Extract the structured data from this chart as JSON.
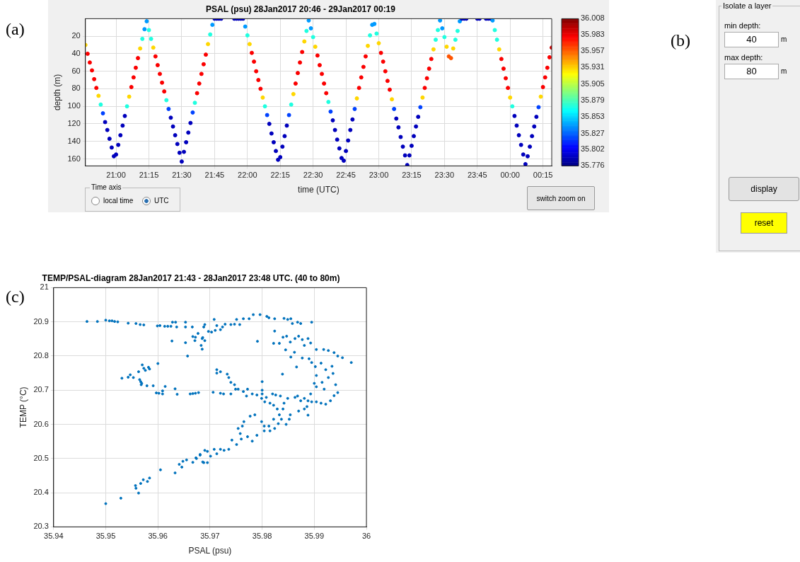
{
  "chart_data": [
    {
      "type": "scatter",
      "title": "PSAL (psu) 28Jan2017 20:46 - 29Jan2017 00:19",
      "xlabel": "time (UTC)",
      "ylabel": "depth (m)",
      "marker": "circle",
      "x": [
        "2017-01-28T20:46",
        "2017-01-28T20:47",
        "2017-01-28T20:48",
        "2017-01-28T20:49",
        "2017-01-28T20:50",
        "2017-01-28T20:51",
        "2017-01-28T20:52",
        "2017-01-28T20:53",
        "2017-01-28T20:54",
        "2017-01-28T20:55",
        "2017-01-28T20:56",
        "2017-01-28T20:57",
        "2017-01-28T20:58",
        "2017-01-28T20:59",
        "2017-01-28T21:00",
        "2017-01-28T21:01",
        "2017-01-28T21:02",
        "2017-01-28T21:03",
        "2017-01-28T21:04",
        "2017-01-28T21:05",
        "2017-01-28T21:06",
        "2017-01-28T21:07",
        "2017-01-28T21:08",
        "2017-01-28T21:09",
        "2017-01-28T21:10",
        "2017-01-28T21:11",
        "2017-01-28T21:12",
        "2017-01-28T21:13",
        "2017-01-28T21:14",
        "2017-01-28T21:15",
        "2017-01-28T21:16",
        "2017-01-28T21:17",
        "2017-01-28T21:18",
        "2017-01-28T21:19",
        "2017-01-28T21:20",
        "2017-01-28T21:21",
        "2017-01-28T21:22",
        "2017-01-28T21:23",
        "2017-01-28T21:24",
        "2017-01-28T21:25",
        "2017-01-28T21:26",
        "2017-01-28T21:27",
        "2017-01-28T21:28",
        "2017-01-28T21:29",
        "2017-01-28T21:30",
        "2017-01-28T21:31",
        "2017-01-28T21:32",
        "2017-01-28T21:33",
        "2017-01-28T21:34",
        "2017-01-28T21:35",
        "2017-01-28T21:36",
        "2017-01-28T21:37",
        "2017-01-28T21:38",
        "2017-01-28T21:39",
        "2017-01-28T21:40",
        "2017-01-28T21:41",
        "2017-01-28T21:42",
        "2017-01-28T21:43",
        "2017-01-28T21:44",
        "2017-01-28T21:45",
        "2017-01-28T21:46",
        "2017-01-28T21:47",
        "2017-01-28T21:48",
        "2017-01-28T21:54",
        "2017-01-28T21:55",
        "2017-01-28T21:56",
        "2017-01-28T21:57",
        "2017-01-28T21:58",
        "2017-01-28T21:59",
        "2017-01-28T22:00",
        "2017-01-28T22:01",
        "2017-01-28T22:02",
        "2017-01-28T22:03",
        "2017-01-28T22:04",
        "2017-01-28T22:05",
        "2017-01-28T22:06",
        "2017-01-28T22:07",
        "2017-01-28T22:08",
        "2017-01-28T22:09",
        "2017-01-28T22:10",
        "2017-01-28T22:11",
        "2017-01-28T22:12",
        "2017-01-28T22:13",
        "2017-01-28T22:14",
        "2017-01-28T22:15",
        "2017-01-28T22:16",
        "2017-01-28T22:17",
        "2017-01-28T22:18",
        "2017-01-28T22:19",
        "2017-01-28T22:20",
        "2017-01-28T22:21",
        "2017-01-28T22:22",
        "2017-01-28T22:23",
        "2017-01-28T22:24",
        "2017-01-28T22:25",
        "2017-01-28T22:26",
        "2017-01-28T22:27",
        "2017-01-28T22:28",
        "2017-01-28T22:29",
        "2017-01-28T22:30",
        "2017-01-28T22:31",
        "2017-01-28T22:32",
        "2017-01-28T22:33",
        "2017-01-28T22:34",
        "2017-01-28T22:35",
        "2017-01-28T22:36",
        "2017-01-28T22:37",
        "2017-01-28T22:38",
        "2017-01-28T22:39",
        "2017-01-28T22:40",
        "2017-01-28T22:41",
        "2017-01-28T22:42",
        "2017-01-28T22:43",
        "2017-01-28T22:44",
        "2017-01-28T22:45",
        "2017-01-28T22:46",
        "2017-01-28T22:47",
        "2017-01-28T22:48",
        "2017-01-28T22:49",
        "2017-01-28T22:50",
        "2017-01-28T22:51",
        "2017-01-28T22:52",
        "2017-01-28T22:53",
        "2017-01-28T22:54",
        "2017-01-28T22:55",
        "2017-01-28T22:56",
        "2017-01-28T22:57",
        "2017-01-28T22:58",
        "2017-01-28T22:59",
        "2017-01-28T23:00",
        "2017-01-28T23:01",
        "2017-01-28T23:02",
        "2017-01-28T23:03",
        "2017-01-28T23:04",
        "2017-01-28T23:05",
        "2017-01-28T23:06",
        "2017-01-28T23:07",
        "2017-01-28T23:08",
        "2017-01-28T23:09",
        "2017-01-28T23:10",
        "2017-01-28T23:11",
        "2017-01-28T23:12",
        "2017-01-28T23:13",
        "2017-01-28T23:14",
        "2017-01-28T23:15",
        "2017-01-28T23:16",
        "2017-01-28T23:17",
        "2017-01-28T23:18",
        "2017-01-28T23:19",
        "2017-01-28T23:20",
        "2017-01-28T23:21",
        "2017-01-28T23:22",
        "2017-01-28T23:23",
        "2017-01-28T23:24",
        "2017-01-28T23:25",
        "2017-01-28T23:26",
        "2017-01-28T23:27",
        "2017-01-28T23:28",
        "2017-01-28T23:29",
        "2017-01-28T23:30",
        "2017-01-28T23:31",
        "2017-01-28T23:32",
        "2017-01-28T23:33",
        "2017-01-28T23:34",
        "2017-01-28T23:35",
        "2017-01-28T23:36",
        "2017-01-28T23:37",
        "2017-01-28T23:38",
        "2017-01-28T23:39",
        "2017-01-28T23:40",
        "2017-01-28T23:45",
        "2017-01-28T23:46",
        "2017-01-28T23:49",
        "2017-01-28T23:50",
        "2017-01-28T23:51",
        "2017-01-28T23:52",
        "2017-01-28T23:53",
        "2017-01-28T23:54",
        "2017-01-28T23:55",
        "2017-01-28T23:56",
        "2017-01-28T23:57",
        "2017-01-28T23:58",
        "2017-01-28T23:59",
        "2017-01-29T00:00",
        "2017-01-29T00:01",
        "2017-01-29T00:02",
        "2017-01-29T00:03",
        "2017-01-29T00:04",
        "2017-01-29T00:05",
        "2017-01-29T00:06",
        "2017-01-29T00:07",
        "2017-01-29T00:08",
        "2017-01-29T00:09",
        "2017-01-29T00:10",
        "2017-01-29T00:11",
        "2017-01-29T00:12",
        "2017-01-29T00:13",
        "2017-01-29T00:14",
        "2017-01-29T00:15",
        "2017-01-29T00:16",
        "2017-01-29T00:17",
        "2017-01-29T00:18",
        "2017-01-29T00:19"
      ],
      "values": [
        30,
        40,
        50,
        59,
        69,
        79,
        88,
        98,
        108,
        118,
        127,
        137,
        147,
        157,
        155,
        144,
        133,
        122,
        111,
        100,
        89,
        78,
        67,
        56,
        45,
        34,
        23,
        12,
        3,
        13,
        23,
        33,
        43,
        53,
        63,
        73,
        83,
        93,
        103,
        113,
        123,
        133,
        143,
        153,
        163,
        152,
        141,
        130,
        119,
        107,
        96,
        85,
        74,
        63,
        52,
        41,
        29,
        18,
        7,
        0,
        0,
        0,
        0,
        0,
        0,
        0,
        0,
        0,
        9,
        19,
        29,
        39,
        49,
        60,
        70,
        80,
        90,
        100,
        110,
        120,
        131,
        141,
        151,
        161,
        158,
        146,
        134,
        122,
        110,
        98,
        86,
        74,
        62,
        50,
        38,
        26,
        14,
        2,
        11,
        21,
        32,
        42,
        53,
        63,
        74,
        85,
        95,
        106,
        116,
        127,
        138,
        148,
        159,
        162,
        151,
        139,
        127,
        115,
        103,
        91,
        79,
        67,
        55,
        43,
        31,
        19,
        7,
        6,
        17,
        28,
        39,
        49,
        60,
        71,
        81,
        92,
        103,
        114,
        124,
        135,
        146,
        156,
        167,
        156,
        145,
        134,
        123,
        112,
        101,
        90,
        79,
        68,
        57,
        46,
        35,
        24,
        13,
        2,
        11,
        21,
        32,
        43,
        45,
        34,
        24,
        14,
        3,
        0,
        0,
        0,
        0,
        0,
        0,
        0,
        0,
        2,
        13,
        24,
        35,
        46,
        57,
        68,
        79,
        90,
        100,
        111,
        122,
        133,
        144,
        155,
        166,
        157,
        146,
        134,
        123,
        112,
        101,
        89,
        78,
        67,
        56,
        44,
        33
      ],
      "cvalues": [
        35.93,
        35.98,
        35.98,
        35.98,
        35.98,
        35.98,
        35.93,
        35.87,
        35.82,
        35.79,
        35.79,
        35.79,
        35.79,
        35.79,
        35.79,
        35.79,
        35.79,
        35.79,
        35.79,
        35.87,
        35.93,
        35.98,
        35.98,
        35.98,
        35.98,
        35.93,
        35.87,
        35.84,
        35.84,
        35.87,
        35.87,
        35.93,
        35.98,
        35.98,
        35.98,
        35.98,
        35.98,
        35.87,
        35.82,
        35.79,
        35.79,
        35.79,
        35.79,
        35.79,
        35.79,
        35.79,
        35.79,
        35.79,
        35.79,
        35.82,
        35.87,
        35.98,
        35.98,
        35.98,
        35.98,
        35.98,
        35.93,
        35.87,
        35.84,
        35.79,
        35.79,
        35.79,
        35.79,
        35.79,
        35.79,
        35.79,
        35.79,
        35.79,
        35.84,
        35.87,
        35.93,
        35.98,
        35.98,
        35.98,
        35.98,
        35.98,
        35.93,
        35.87,
        35.82,
        35.79,
        35.79,
        35.79,
        35.79,
        35.79,
        35.79,
        35.79,
        35.79,
        35.79,
        35.82,
        35.87,
        35.93,
        35.98,
        35.98,
        35.98,
        35.98,
        35.93,
        35.87,
        35.84,
        35.84,
        35.87,
        35.93,
        35.98,
        35.98,
        35.98,
        35.98,
        35.98,
        35.87,
        35.82,
        35.79,
        35.79,
        35.79,
        35.79,
        35.79,
        35.79,
        35.79,
        35.79,
        35.79,
        35.79,
        35.82,
        35.93,
        35.98,
        35.98,
        35.98,
        35.98,
        35.93,
        35.87,
        35.84,
        35.84,
        35.87,
        35.93,
        35.98,
        35.98,
        35.98,
        35.98,
        35.98,
        35.93,
        35.82,
        35.79,
        35.79,
        35.79,
        35.79,
        35.79,
        35.79,
        35.79,
        35.79,
        35.79,
        35.79,
        35.79,
        35.82,
        35.93,
        35.98,
        35.98,
        35.98,
        35.98,
        35.93,
        35.87,
        35.87,
        35.84,
        35.84,
        35.87,
        35.93,
        35.96,
        35.96,
        35.93,
        35.87,
        35.87,
        35.84,
        35.79,
        35.79,
        35.79,
        35.79,
        35.79,
        35.79,
        35.79,
        35.79,
        35.84,
        35.87,
        35.87,
        35.93,
        35.98,
        35.98,
        35.98,
        35.98,
        35.93,
        35.87,
        35.79,
        35.79,
        35.79,
        35.79,
        35.79,
        35.79,
        35.79,
        35.79,
        35.79,
        35.79,
        35.79,
        35.82,
        35.93,
        35.98,
        35.98,
        35.98,
        35.98,
        35.99
      ],
      "clim": [
        35.776,
        36.008
      ],
      "cticks": [
        {
          "value": 35.776,
          "label": "35.776"
        },
        {
          "value": 35.802,
          "label": "35.802"
        },
        {
          "value": 35.827,
          "label": "35.827"
        },
        {
          "value": 35.853,
          "label": "35.853"
        },
        {
          "value": 35.879,
          "label": "35.879"
        },
        {
          "value": 35.905,
          "label": "35.905"
        },
        {
          "value": 35.931,
          "label": "35.931"
        },
        {
          "value": 35.957,
          "label": "35.957"
        },
        {
          "value": 35.983,
          "label": "35.983"
        },
        {
          "value": 36.008,
          "label": "36.008"
        }
      ],
      "xlim": [
        "2017-01-28T20:46",
        "2017-01-29T00:19"
      ],
      "xticks": [
        {
          "value": "2017-01-28T21:00",
          "label": "21:00"
        },
        {
          "value": "2017-01-28T21:15",
          "label": "21:15"
        },
        {
          "value": "2017-01-28T21:30",
          "label": "21:30"
        },
        {
          "value": "2017-01-28T21:45",
          "label": "21:45"
        },
        {
          "value": "2017-01-28T22:00",
          "label": "22:00"
        },
        {
          "value": "2017-01-28T22:15",
          "label": "22:15"
        },
        {
          "value": "2017-01-28T22:30",
          "label": "22:30"
        },
        {
          "value": "2017-01-28T22:45",
          "label": "22:45"
        },
        {
          "value": "2017-01-28T23:00",
          "label": "23:00"
        },
        {
          "value": "2017-01-28T23:15",
          "label": "23:15"
        },
        {
          "value": "2017-01-28T23:30",
          "label": "23:30"
        },
        {
          "value": "2017-01-28T23:45",
          "label": "23:45"
        },
        {
          "value": "2017-01-29T00:00",
          "label": "00:00"
        },
        {
          "value": "2017-01-29T00:15",
          "label": "00:15"
        }
      ],
      "ylim": [
        168,
        0
      ],
      "yticks": [
        20,
        40,
        60,
        80,
        100,
        120,
        140,
        160
      ],
      "grid": true,
      "annotations": [
        "(a)",
        "Time axis",
        "local time",
        "UTC",
        "switch zoom on"
      ]
    },
    {
      "type": "scatter",
      "title": "TEMP/PSAL-diagram 28Jan2017 21:43 - 28Jan2017 23:48 UTC. (40 to 80m)",
      "xlabel": "PSAL (psu)",
      "ylabel": "TEMP (°C)",
      "color": "#0072bd",
      "marker": "circle",
      "x": [
        35.9464,
        35.9484,
        35.95,
        35.9507,
        35.9512,
        35.9517,
        35.9523,
        35.9543,
        35.9558,
        35.9566,
        35.9573,
        35.9599,
        35.9604,
        35.9613,
        35.9619,
        35.9625,
        35.9628,
        35.9634,
        35.9636,
        35.9627,
        35.9653,
        35.9653,
        35.9653,
        35.9657,
        35.9666,
        35.9667,
        35.9671,
        35.9677,
        35.9683,
        35.9685,
        35.9686,
        35.9688,
        35.969,
        35.9531,
        35.9543,
        35.9547,
        35.9553,
        35.9563,
        35.9565,
        35.9567,
        35.9568,
        35.957,
        35.9573,
        35.9576,
        35.9579,
        35.9582,
        35.9584,
        35.9569,
        35.9591,
        35.96,
        35.9597,
        35.9602,
        35.9609,
        35.9614,
        35.9609,
        35.9633,
        35.9637,
        35.9662,
        35.9667,
        35.9672,
        35.9678,
        35.95,
        35.9529,
        35.9557,
        35.9558,
        35.9563,
        35.9567,
        35.9572,
        35.958,
        35.9584,
        35.9605,
        35.9633,
        35.9641,
        35.9646,
        35.9648,
        35.9655,
        35.9667,
        35.9673,
        35.9681,
        35.9686,
        35.969,
        35.9672,
        35.9685,
        35.969,
        35.9697,
        35.9703,
        35.9708,
        35.971,
        35.9713,
        35.972,
        35.9724,
        35.9729,
        35.974,
        35.9747,
        35.9751,
        35.9757,
        35.9764,
        35.9775,
        35.9783,
        35.9796,
        35.9791,
        35.9809,
        35.9813,
        35.9824,
        35.9824,
        35.9822,
        35.9833,
        35.9842,
        35.9849,
        35.9855,
        35.9858,
        35.9868,
        35.9874,
        35.9895,
        35.984,
        35.9847,
        35.9854,
        35.9863,
        35.987,
        35.9877,
        35.9881,
        35.9888,
        35.9893,
        35.9845,
        35.9855,
        35.9862,
        35.9866,
        35.9877,
        35.989,
        35.9895,
        35.9904,
        35.9918,
        35.9927,
        35.9938,
        35.9945,
        35.9954,
        35.9971,
        35.9902,
        35.9913,
        35.9922,
        35.9934,
        35.9936,
        35.9927,
        35.9904,
        35.99,
        35.9904,
        35.9915,
        35.9919,
        35.9941,
        35.9945,
        35.9938,
        35.9931,
        35.9922,
        35.9913,
        35.9904,
        35.9895,
        35.9888,
        35.9881,
        35.9874,
        35.9868,
        35.9863,
        35.9893,
        35.9886,
        35.9888,
        35.9881,
        35.987,
        35.9854,
        35.9852,
        35.9846,
        35.9837,
        35.9831,
        35.9824,
        35.9815,
        35.9804,
        35.9804,
        35.9799,
        35.9813,
        35.9822,
        35.9833,
        35.984,
        35.9829,
        35.9822,
        35.9815,
        35.9805,
        35.9799,
        35.9808,
        35.982,
        35.9826,
        35.9835,
        35.9842,
        35.9849,
        35.979,
        35.9781,
        35.977,
        35.9764,
        35.9754,
        35.9747,
        35.974,
        35.9736,
        35.9733,
        35.972,
        35.9713,
        35.9713,
        35.9749,
        35.9772,
        35.98,
        35.98,
        35.9839,
        35.98,
        35.9706,
        35.972,
        35.9726,
        35.974,
        35.9777,
        35.9786,
        35.9765,
        35.9762,
        35.9754,
        35.9758,
        35.9772,
        35.9781,
        35.979,
        35.976,
        35.9751,
        35.9742,
        35.9736,
        35.9727,
        35.972,
        35.9713,
        35.9708,
        35.9701,
        35.9695,
        35.9688,
        35.9695,
        35.9681,
        35.9674
      ],
      "values": [
        20.901,
        20.901,
        20.905,
        20.903,
        20.903,
        20.901,
        20.9,
        20.896,
        20.895,
        20.892,
        20.891,
        20.888,
        20.889,
        20.887,
        20.887,
        20.887,
        20.899,
        20.899,
        20.885,
        20.844,
        20.885,
        20.899,
        20.839,
        20.8,
        20.885,
        20.857,
        20.845,
        20.866,
        20.831,
        20.82,
        20.854,
        20.885,
        20.845,
        20.735,
        20.738,
        20.745,
        20.737,
        20.754,
        20.731,
        20.725,
        20.716,
        20.774,
        20.764,
        20.758,
        20.713,
        20.767,
        20.762,
        20.72,
        20.713,
        20.778,
        20.692,
        20.691,
        20.689,
        20.711,
        20.698,
        20.704,
        20.688,
        20.689,
        20.69,
        20.691,
        20.693,
        20.368,
        20.384,
        20.421,
        20.413,
        20.399,
        20.427,
        20.438,
        20.433,
        20.443,
        20.467,
        20.458,
        20.483,
        20.475,
        20.492,
        20.496,
        20.489,
        20.502,
        20.512,
        20.49,
        20.524,
        20.855,
        20.851,
        20.892,
        20.872,
        20.87,
        20.907,
        20.875,
        20.889,
        20.877,
        20.885,
        20.893,
        20.892,
        20.893,
        20.907,
        20.892,
        20.909,
        20.909,
        20.921,
        20.921,
        20.843,
        20.916,
        20.912,
        20.909,
        20.873,
        20.837,
        20.837,
        20.91,
        20.907,
        20.909,
        20.895,
        20.899,
        20.895,
        20.899,
        20.855,
        20.858,
        20.841,
        20.851,
        20.858,
        20.848,
        20.831,
        20.851,
        20.838,
        20.818,
        20.797,
        20.811,
        20.768,
        20.794,
        20.792,
        20.781,
        20.819,
        20.819,
        20.816,
        20.81,
        20.8,
        20.795,
        20.781,
        20.769,
        20.779,
        20.76,
        20.77,
        20.749,
        20.737,
        20.743,
        20.72,
        20.71,
        20.723,
        20.703,
        20.716,
        20.693,
        20.684,
        20.669,
        20.659,
        20.662,
        20.666,
        20.666,
        20.669,
        20.676,
        20.669,
        20.683,
        20.679,
        20.689,
        20.652,
        20.627,
        20.645,
        20.639,
        20.628,
        20.615,
        20.6,
        20.615,
        20.602,
        20.588,
        20.581,
        20.581,
        20.595,
        20.608,
        20.595,
        20.615,
        20.628,
        20.645,
        20.645,
        20.656,
        20.662,
        20.666,
        20.676,
        20.679,
        20.689,
        20.686,
        20.683,
        20.662,
        20.676,
        20.686,
        20.689,
        20.683,
        20.696,
        20.703,
        20.716,
        20.723,
        20.737,
        20.747,
        20.754,
        20.76,
        20.75,
        20.703,
        20.703,
        20.725,
        20.7,
        20.747,
        20.689,
        20.694,
        20.691,
        20.689,
        20.689,
        20.624,
        20.628,
        20.608,
        20.595,
        20.588,
        20.573,
        20.564,
        20.551,
        20.568,
        20.557,
        20.541,
        20.554,
        20.527,
        20.524,
        20.527,
        20.514,
        20.527,
        20.507,
        20.521,
        20.488,
        20.488,
        20.51,
        20.5
      ],
      "xlim": [
        35.94,
        36
      ],
      "xticks": [
        35.94,
        35.95,
        35.96,
        35.97,
        35.98,
        35.99,
        36
      ],
      "ylim": [
        20.3,
        21
      ],
      "yticks": [
        20.3,
        20.4,
        20.5,
        20.6,
        20.7,
        20.8,
        20.9,
        21
      ],
      "grid": true,
      "annotations": [
        "(c)"
      ]
    },
    {
      "type": "other",
      "title": "Isolate a layer",
      "annotations": [
        "(b)",
        "min depth:",
        "40",
        "m",
        "max depth:",
        "80",
        "m",
        "display",
        "reset"
      ]
    }
  ]
}
